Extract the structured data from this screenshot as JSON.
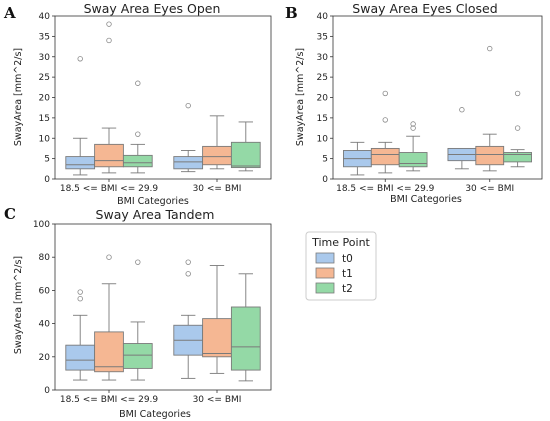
{
  "panel_letters": [
    "A",
    "B",
    "C"
  ],
  "legend": {
    "title": "Time Point",
    "entries": [
      {
        "label": "t0",
        "color": "#aac9ec"
      },
      {
        "label": "t1",
        "color": "#f5b793"
      },
      {
        "label": "t2",
        "color": "#94d9a6"
      }
    ]
  },
  "chart_data": [
    {
      "type": "box",
      "title": "Sway Area Eyes Open",
      "xlabel": "BMI Categories",
      "ylabel": "SwayArea [mm^2/s]",
      "ylim": [
        0,
        40
      ],
      "yticks": [
        0,
        5,
        10,
        15,
        20,
        25,
        30,
        35,
        40
      ],
      "show_xlabel": true,
      "categories": [
        "18.5 <= BMI <= 29.9",
        "30 <= BMI"
      ],
      "series": [
        {
          "name": "t0",
          "boxes": [
            {
              "whislo": 1.0,
              "q1": 2.5,
              "med": 3.5,
              "q3": 5.5,
              "whishi": 10.0,
              "fliers": [
                29.5
              ]
            },
            {
              "whislo": 1.8,
              "q1": 2.5,
              "med": 4.2,
              "q3": 5.5,
              "whishi": 7.0,
              "fliers": [
                18.0
              ]
            }
          ]
        },
        {
          "name": "t1",
          "boxes": [
            {
              "whislo": 1.5,
              "q1": 3.0,
              "med": 4.5,
              "q3": 8.5,
              "whishi": 12.5,
              "fliers": [
                34.0,
                38.0
              ]
            },
            {
              "whislo": 2.5,
              "q1": 3.5,
              "med": 5.5,
              "q3": 8.0,
              "whishi": 15.5,
              "fliers": []
            }
          ]
        },
        {
          "name": "t2",
          "boxes": [
            {
              "whislo": 1.5,
              "q1": 3.0,
              "med": 4.0,
              "q3": 5.8,
              "whishi": 8.5,
              "fliers": [
                11.0,
                23.5
              ]
            },
            {
              "whislo": 2.0,
              "q1": 2.8,
              "med": 3.2,
              "q3": 9.0,
              "whishi": 14.0,
              "fliers": []
            }
          ]
        }
      ]
    },
    {
      "type": "box",
      "title": "Sway Area Eyes Closed",
      "xlabel": "BMI Categories",
      "ylabel": "SwayArea [mm^2/s]",
      "ylim": [
        0,
        40
      ],
      "yticks": [
        0,
        5,
        10,
        15,
        20,
        25,
        30,
        35,
        40
      ],
      "show_xlabel": true,
      "categories": [
        "18.5 <= BMI <= 29.9",
        "30 <= BMI"
      ],
      "series": [
        {
          "name": "t0",
          "boxes": [
            {
              "whislo": 1.0,
              "q1": 3.0,
              "med": 5.0,
              "q3": 7.0,
              "whishi": 9.0,
              "fliers": []
            },
            {
              "whislo": 2.5,
              "q1": 4.5,
              "med": 6.0,
              "q3": 7.5,
              "whishi": 7.5,
              "fliers": [
                17.0
              ]
            }
          ]
        },
        {
          "name": "t1",
          "boxes": [
            {
              "whislo": 1.5,
              "q1": 3.5,
              "med": 6.0,
              "q3": 7.5,
              "whishi": 9.0,
              "fliers": [
                14.5,
                21.0
              ]
            },
            {
              "whislo": 2.0,
              "q1": 3.5,
              "med": 6.0,
              "q3": 8.0,
              "whishi": 11.0,
              "fliers": [
                32.0
              ]
            }
          ]
        },
        {
          "name": "t2",
          "boxes": [
            {
              "whislo": 2.0,
              "q1": 3.0,
              "med": 3.8,
              "q3": 6.5,
              "whishi": 10.5,
              "fliers": [
                12.5,
                13.5
              ]
            },
            {
              "whislo": 3.0,
              "q1": 4.2,
              "med": 6.0,
              "q3": 6.5,
              "whishi": 7.2,
              "fliers": [
                12.5,
                21.0
              ]
            }
          ]
        }
      ]
    },
    {
      "type": "box",
      "title": "Sway Area Tandem",
      "xlabel": "BMI Categories",
      "ylabel": "SwayArea [mm^2/s]",
      "ylim": [
        0,
        100
      ],
      "yticks": [
        0,
        20,
        40,
        60,
        80,
        100
      ],
      "show_xlabel": true,
      "categories": [
        "18.5 <= BMI <= 29.9",
        "30 <= BMI"
      ],
      "series": [
        {
          "name": "t0",
          "boxes": [
            {
              "whislo": 6.0,
              "q1": 12.0,
              "med": 18.0,
              "q3": 27.0,
              "whishi": 45.0,
              "fliers": [
                55.0,
                59.0
              ]
            },
            {
              "whislo": 7.0,
              "q1": 21.0,
              "med": 30.0,
              "q3": 39.0,
              "whishi": 45.0,
              "fliers": [
                70.0,
                77.0
              ]
            }
          ]
        },
        {
          "name": "t1",
          "boxes": [
            {
              "whislo": 6.0,
              "q1": 11.0,
              "med": 14.0,
              "q3": 35.0,
              "whishi": 64.0,
              "fliers": [
                80.0
              ]
            },
            {
              "whislo": 10.0,
              "q1": 20.0,
              "med": 22.0,
              "q3": 43.0,
              "whishi": 75.0,
              "fliers": []
            }
          ]
        },
        {
          "name": "t2",
          "boxes": [
            {
              "whislo": 6.0,
              "q1": 13.0,
              "med": 21.0,
              "q3": 28.0,
              "whishi": 41.0,
              "fliers": [
                77.0
              ]
            },
            {
              "whislo": 5.5,
              "q1": 12.0,
              "med": 26.0,
              "q3": 50.0,
              "whishi": 70.0,
              "fliers": []
            }
          ]
        }
      ]
    }
  ]
}
